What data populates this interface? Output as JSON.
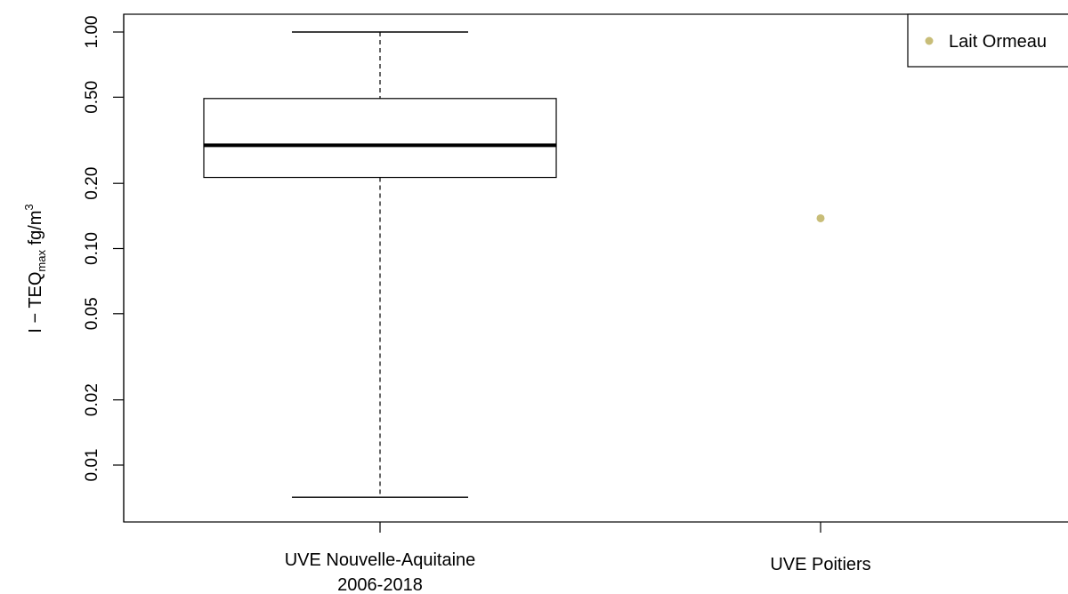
{
  "chart_data": {
    "type": "box",
    "ylabel": {
      "prefix": "I − TEQ",
      "subscript": "max",
      "unit_base": " fg/m",
      "superscript": "3"
    },
    "yscale": "log",
    "ylim": [
      0.0065,
      1.0
    ],
    "yticks": [
      {
        "value": 0.01,
        "label": "0.01"
      },
      {
        "value": 0.02,
        "label": "0.02"
      },
      {
        "value": 0.05,
        "label": "0.05"
      },
      {
        "value": 0.1,
        "label": "0.10"
      },
      {
        "value": 0.2,
        "label": "0.20"
      },
      {
        "value": 0.5,
        "label": "0.50"
      },
      {
        "value": 1.0,
        "label": "1.00"
      }
    ],
    "categories": [
      {
        "line1": "UVE Nouvelle-Aquitaine",
        "line2": "2006-2018"
      },
      {
        "line1": "UVE Poitiers",
        "line2": ""
      }
    ],
    "box": {
      "category_index": 0,
      "whisker_low": 0.0071,
      "q1": 0.213,
      "median": 0.3,
      "q3": 0.493,
      "whisker_high": 1.0
    },
    "points": [
      {
        "category_index": 1,
        "value": 0.138,
        "series": "Lait Ormeau",
        "color": "#c8bd78"
      }
    ],
    "legend": {
      "position": "top-right",
      "entries": [
        {
          "label": "Lait Ormeau",
          "color": "#c8bd78"
        }
      ]
    },
    "grid": false
  }
}
